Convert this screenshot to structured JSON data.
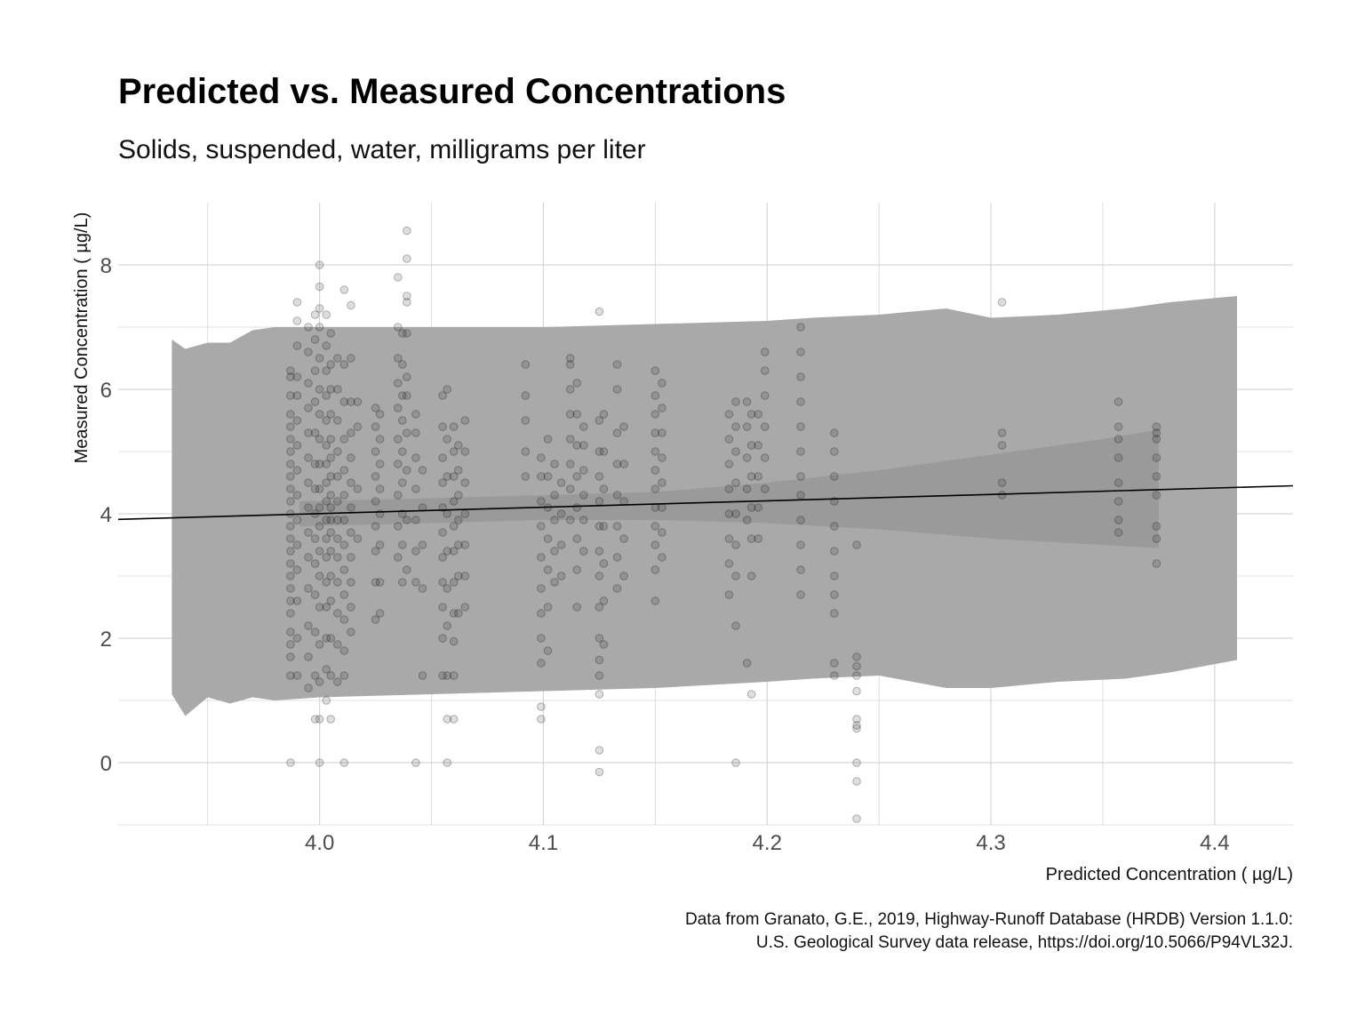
{
  "chart_data": {
    "type": "scatter",
    "title": "Predicted vs. Measured Concentrations",
    "subtitle": "Solids, suspended, water, milligrams per liter",
    "xlabel": "Predicted Concentration ( µg/L)",
    "ylabel": "Measured Concentration ( µg/L)",
    "caption_lines": [
      "Data from Granato, G.E., 2019, Highway-Runoff Database (HRDB) Version 1.1.0:",
      "U.S. Geological Survey data release, https://doi.org/10.5066/P94VL32J."
    ],
    "xlim": [
      3.91,
      4.435
    ],
    "ylim": [
      -1.0,
      9.0
    ],
    "x_ticks": [
      4.0,
      4.1,
      4.2,
      4.3,
      4.4
    ],
    "x_tick_labels": [
      "4.0",
      "4.1",
      "4.2",
      "4.3",
      "4.4"
    ],
    "y_ticks": [
      0,
      2,
      4,
      6,
      8
    ],
    "y_tick_labels": [
      "0",
      "2",
      "4",
      "6",
      "8"
    ],
    "grid": true,
    "colors": {
      "points": "#000000",
      "prediction_band": "#a9a9a9",
      "confidence_band": "#9a9a9a",
      "fit_line": "#000000",
      "grid": "#d6d6d6"
    },
    "fit_line": {
      "x": [
        3.91,
        4.435
      ],
      "y": [
        3.91,
        4.45
      ]
    },
    "prediction_band": {
      "x": [
        3.934,
        3.94,
        3.95,
        3.96,
        3.97,
        3.98,
        4.0,
        4.05,
        4.1,
        4.15,
        4.2,
        4.22,
        4.25,
        4.28,
        4.3,
        4.33,
        4.36,
        4.38,
        4.41
      ],
      "upper": [
        6.8,
        6.65,
        6.75,
        6.75,
        6.95,
        7.0,
        7.0,
        7.0,
        7.0,
        7.05,
        7.1,
        7.15,
        7.2,
        7.3,
        7.15,
        7.2,
        7.3,
        7.4,
        7.5
      ],
      "lower": [
        1.1,
        0.75,
        1.05,
        0.95,
        1.05,
        1.0,
        1.05,
        1.1,
        1.15,
        1.2,
        1.3,
        1.35,
        1.4,
        1.2,
        1.2,
        1.3,
        1.35,
        1.45,
        1.65
      ]
    },
    "confidence_band": {
      "x": [
        3.991,
        4.05,
        4.1,
        4.15,
        4.2,
        4.25,
        4.3,
        4.35,
        4.375
      ],
      "upper": [
        4.2,
        4.25,
        4.3,
        4.35,
        4.5,
        4.7,
        4.95,
        5.2,
        5.35
      ],
      "lower": [
        3.8,
        3.85,
        3.9,
        3.9,
        3.85,
        3.75,
        3.6,
        3.5,
        3.45
      ]
    },
    "points": [
      {
        "x": 3.987,
        "y": [
          0.0,
          1.4,
          1.7,
          1.9,
          2.1,
          2.4,
          2.6,
          2.8,
          3.0,
          3.2,
          3.4,
          3.6,
          3.8,
          4.0,
          4.2,
          4.4,
          4.6,
          4.8,
          5.0,
          5.2,
          5.4,
          5.6,
          5.9,
          6.2,
          6.3
        ]
      },
      {
        "x": 3.99,
        "y": [
          1.4,
          2.0,
          2.6,
          3.1,
          3.5,
          3.9,
          4.3,
          4.7,
          5.1,
          5.5,
          5.9,
          6.2,
          6.7,
          7.1,
          7.4
        ]
      },
      {
        "x": 3.995,
        "y": [
          1.2,
          1.7,
          2.2,
          2.8,
          3.3,
          3.7,
          4.1,
          4.5,
          4.9,
          5.3,
          5.7,
          6.1,
          6.6,
          7.0
        ]
      },
      {
        "x": 3.998,
        "y": [
          0.7,
          1.4,
          2.1,
          2.7,
          3.2,
          3.6,
          4.0,
          4.4,
          4.8,
          5.3,
          5.8,
          6.3,
          6.8,
          7.2
        ]
      },
      {
        "x": 4.0,
        "y": [
          0.0,
          0.7,
          1.3,
          1.9,
          2.5,
          3.0,
          3.4,
          3.8,
          4.1,
          4.4,
          4.8,
          5.2,
          5.6,
          6.0,
          6.5,
          7.0,
          7.3,
          7.65,
          8.0
        ]
      },
      {
        "x": 4.003,
        "y": [
          1.0,
          1.5,
          2.0,
          2.5,
          2.9,
          3.3,
          3.6,
          3.9,
          4.2,
          4.5,
          4.8,
          5.1,
          5.5,
          5.9,
          6.3,
          6.7,
          7.2
        ]
      },
      {
        "x": 4.005,
        "y": [
          0.7,
          1.4,
          2.0,
          2.6,
          3.0,
          3.4,
          3.7,
          3.9,
          4.1,
          4.3,
          4.6,
          4.9,
          5.2,
          5.6,
          6.0,
          6.4,
          6.9
        ]
      },
      {
        "x": 4.008,
        "y": [
          1.3,
          1.9,
          2.4,
          2.9,
          3.3,
          3.6,
          3.9,
          4.2,
          4.6,
          5.0,
          5.5,
          6.0,
          6.5
        ]
      },
      {
        "x": 4.011,
        "y": [
          0.0,
          1.4,
          1.8,
          2.3,
          2.7,
          3.1,
          3.5,
          3.9,
          4.3,
          4.7,
          5.2,
          5.8,
          6.4,
          7.6
        ]
      },
      {
        "x": 4.014,
        "y": [
          2.1,
          2.5,
          2.9,
          3.3,
          3.7,
          4.1,
          4.5,
          4.9,
          5.3,
          5.8,
          6.5,
          7.35
        ]
      },
      {
        "x": 4.017,
        "y": [
          3.6,
          4.4,
          5.4,
          5.8
        ]
      },
      {
        "x": 4.025,
        "y": [
          2.3,
          2.9,
          3.4,
          3.8,
          4.2,
          4.6,
          5.0,
          5.4,
          5.7
        ]
      },
      {
        "x": 4.027,
        "y": [
          2.4,
          2.9,
          3.5,
          4.0,
          4.4,
          4.8,
          5.2,
          5.6
        ]
      },
      {
        "x": 4.035,
        "y": [
          3.3,
          3.8,
          4.3,
          4.8,
          5.2,
          5.7,
          6.1,
          6.5,
          7.0,
          7.8
        ]
      },
      {
        "x": 4.037,
        "y": [
          2.9,
          3.5,
          4.0,
          4.5,
          5.0,
          5.5,
          5.9,
          6.4,
          6.9
        ]
      },
      {
        "x": 4.039,
        "y": [
          3.1,
          3.9,
          4.7,
          5.3,
          5.9,
          6.2,
          6.9,
          7.4,
          7.5,
          8.1,
          8.55
        ]
      },
      {
        "x": 4.043,
        "y": [
          0.0,
          2.9,
          3.4,
          3.9,
          4.4,
          4.9,
          5.3,
          5.6
        ]
      },
      {
        "x": 4.046,
        "y": [
          1.4,
          2.8,
          3.5,
          4.1,
          4.7
        ]
      },
      {
        "x": 4.055,
        "y": [
          1.4,
          2.0,
          2.5,
          2.9,
          3.3,
          3.7,
          4.1,
          4.5,
          4.9,
          5.4,
          5.9
        ]
      },
      {
        "x": 4.057,
        "y": [
          0.0,
          0.7,
          1.4,
          2.2,
          2.8,
          3.4,
          4.0,
          4.6,
          5.2,
          6.0
        ]
      },
      {
        "x": 4.06,
        "y": [
          0.7,
          1.4,
          1.95,
          2.4,
          2.9,
          3.4,
          3.8,
          4.2,
          4.6,
          5.0,
          5.4
        ]
      },
      {
        "x": 4.062,
        "y": [
          2.4,
          3.0,
          3.5,
          3.9,
          4.3,
          4.7,
          5.1
        ]
      },
      {
        "x": 4.065,
        "y": [
          2.5,
          3.0,
          3.5,
          4.0,
          4.5,
          5.0,
          5.5
        ]
      },
      {
        "x": 4.092,
        "y": [
          4.6,
          5.0,
          5.5,
          5.9,
          6.4
        ]
      },
      {
        "x": 4.099,
        "y": [
          0.7,
          0.9,
          1.6,
          2.0,
          2.4,
          2.8,
          3.3,
          3.8,
          4.2,
          4.6,
          4.9
        ]
      },
      {
        "x": 4.102,
        "y": [
          1.8,
          2.5,
          3.1,
          3.6,
          4.1,
          4.6,
          5.2
        ]
      },
      {
        "x": 4.105,
        "y": [
          2.9,
          3.4,
          3.9,
          4.3,
          4.8
        ]
      },
      {
        "x": 4.108,
        "y": [
          3.0,
          3.5,
          4.0,
          4.5
        ]
      },
      {
        "x": 4.112,
        "y": [
          3.9,
          4.4,
          4.8,
          5.2,
          5.6,
          6.0,
          6.4,
          6.5
        ]
      },
      {
        "x": 4.115,
        "y": [
          2.5,
          3.1,
          3.6,
          4.1,
          4.6,
          5.1,
          5.6,
          6.1
        ]
      },
      {
        "x": 4.118,
        "y": [
          3.4,
          3.9,
          4.3,
          4.7,
          5.1,
          5.4
        ]
      },
      {
        "x": 4.125,
        "y": [
          -0.15,
          0.2,
          1.1,
          1.4,
          1.65,
          2.0,
          2.5,
          3.0,
          3.4,
          3.8,
          4.2,
          4.6,
          5.0,
          5.5,
          7.25
        ]
      },
      {
        "x": 4.127,
        "y": [
          1.9,
          2.6,
          3.2,
          3.8,
          4.4,
          5.0,
          5.6
        ]
      },
      {
        "x": 4.133,
        "y": [
          2.8,
          3.3,
          3.8,
          4.3,
          4.8,
          5.3,
          6.0,
          6.4
        ]
      },
      {
        "x": 4.136,
        "y": [
          3.0,
          3.6,
          4.2,
          4.8,
          5.4
        ]
      },
      {
        "x": 4.15,
        "y": [
          2.6,
          3.1,
          3.5,
          3.8,
          4.1,
          4.4,
          4.7,
          5.0,
          5.3,
          5.6,
          5.9,
          6.3
        ]
      },
      {
        "x": 4.153,
        "y": [
          3.3,
          3.7,
          4.1,
          4.5,
          4.9,
          5.3,
          5.7,
          6.1
        ]
      },
      {
        "x": 4.183,
        "y": [
          2.7,
          3.2,
          3.6,
          4.0,
          4.4,
          4.8,
          5.2,
          5.6
        ]
      },
      {
        "x": 4.186,
        "y": [
          0.0,
          2.2,
          3.0,
          3.5,
          4.0,
          4.5,
          5.0,
          5.4,
          5.8
        ]
      },
      {
        "x": 4.191,
        "y": [
          1.6,
          3.9,
          4.4,
          4.9,
          5.4,
          5.8
        ]
      },
      {
        "x": 4.193,
        "y": [
          1.1,
          3.0,
          3.6,
          4.1,
          4.6,
          5.1,
          5.6
        ]
      },
      {
        "x": 4.196,
        "y": [
          3.6,
          4.1,
          4.6,
          5.1,
          5.6
        ]
      },
      {
        "x": 4.199,
        "y": [
          4.4,
          4.9,
          5.4,
          5.9,
          6.3,
          6.6
        ]
      },
      {
        "x": 4.215,
        "y": [
          2.7,
          3.1,
          3.5,
          3.9,
          4.3,
          4.6,
          5.0,
          5.4,
          5.8,
          6.2,
          6.6,
          7.0
        ]
      },
      {
        "x": 4.23,
        "y": [
          1.4,
          1.6,
          2.4,
          2.7,
          3.0,
          3.4,
          3.8,
          4.2,
          4.6,
          5.0,
          5.3
        ]
      },
      {
        "x": 4.24,
        "y": [
          -0.9,
          -0.3,
          0.0,
          0.55,
          0.6,
          0.7,
          1.15,
          1.4,
          1.55,
          1.7,
          3.5
        ]
      },
      {
        "x": 4.305,
        "y": [
          4.3,
          4.5,
          5.1,
          5.3,
          7.4
        ]
      },
      {
        "x": 4.357,
        "y": [
          3.7,
          3.9,
          4.2,
          4.5,
          4.9,
          5.2,
          5.4,
          5.8
        ]
      },
      {
        "x": 4.374,
        "y": [
          3.2,
          3.6,
          3.8,
          4.3,
          4.6,
          4.9,
          5.2,
          5.3,
          5.4
        ]
      }
    ]
  }
}
